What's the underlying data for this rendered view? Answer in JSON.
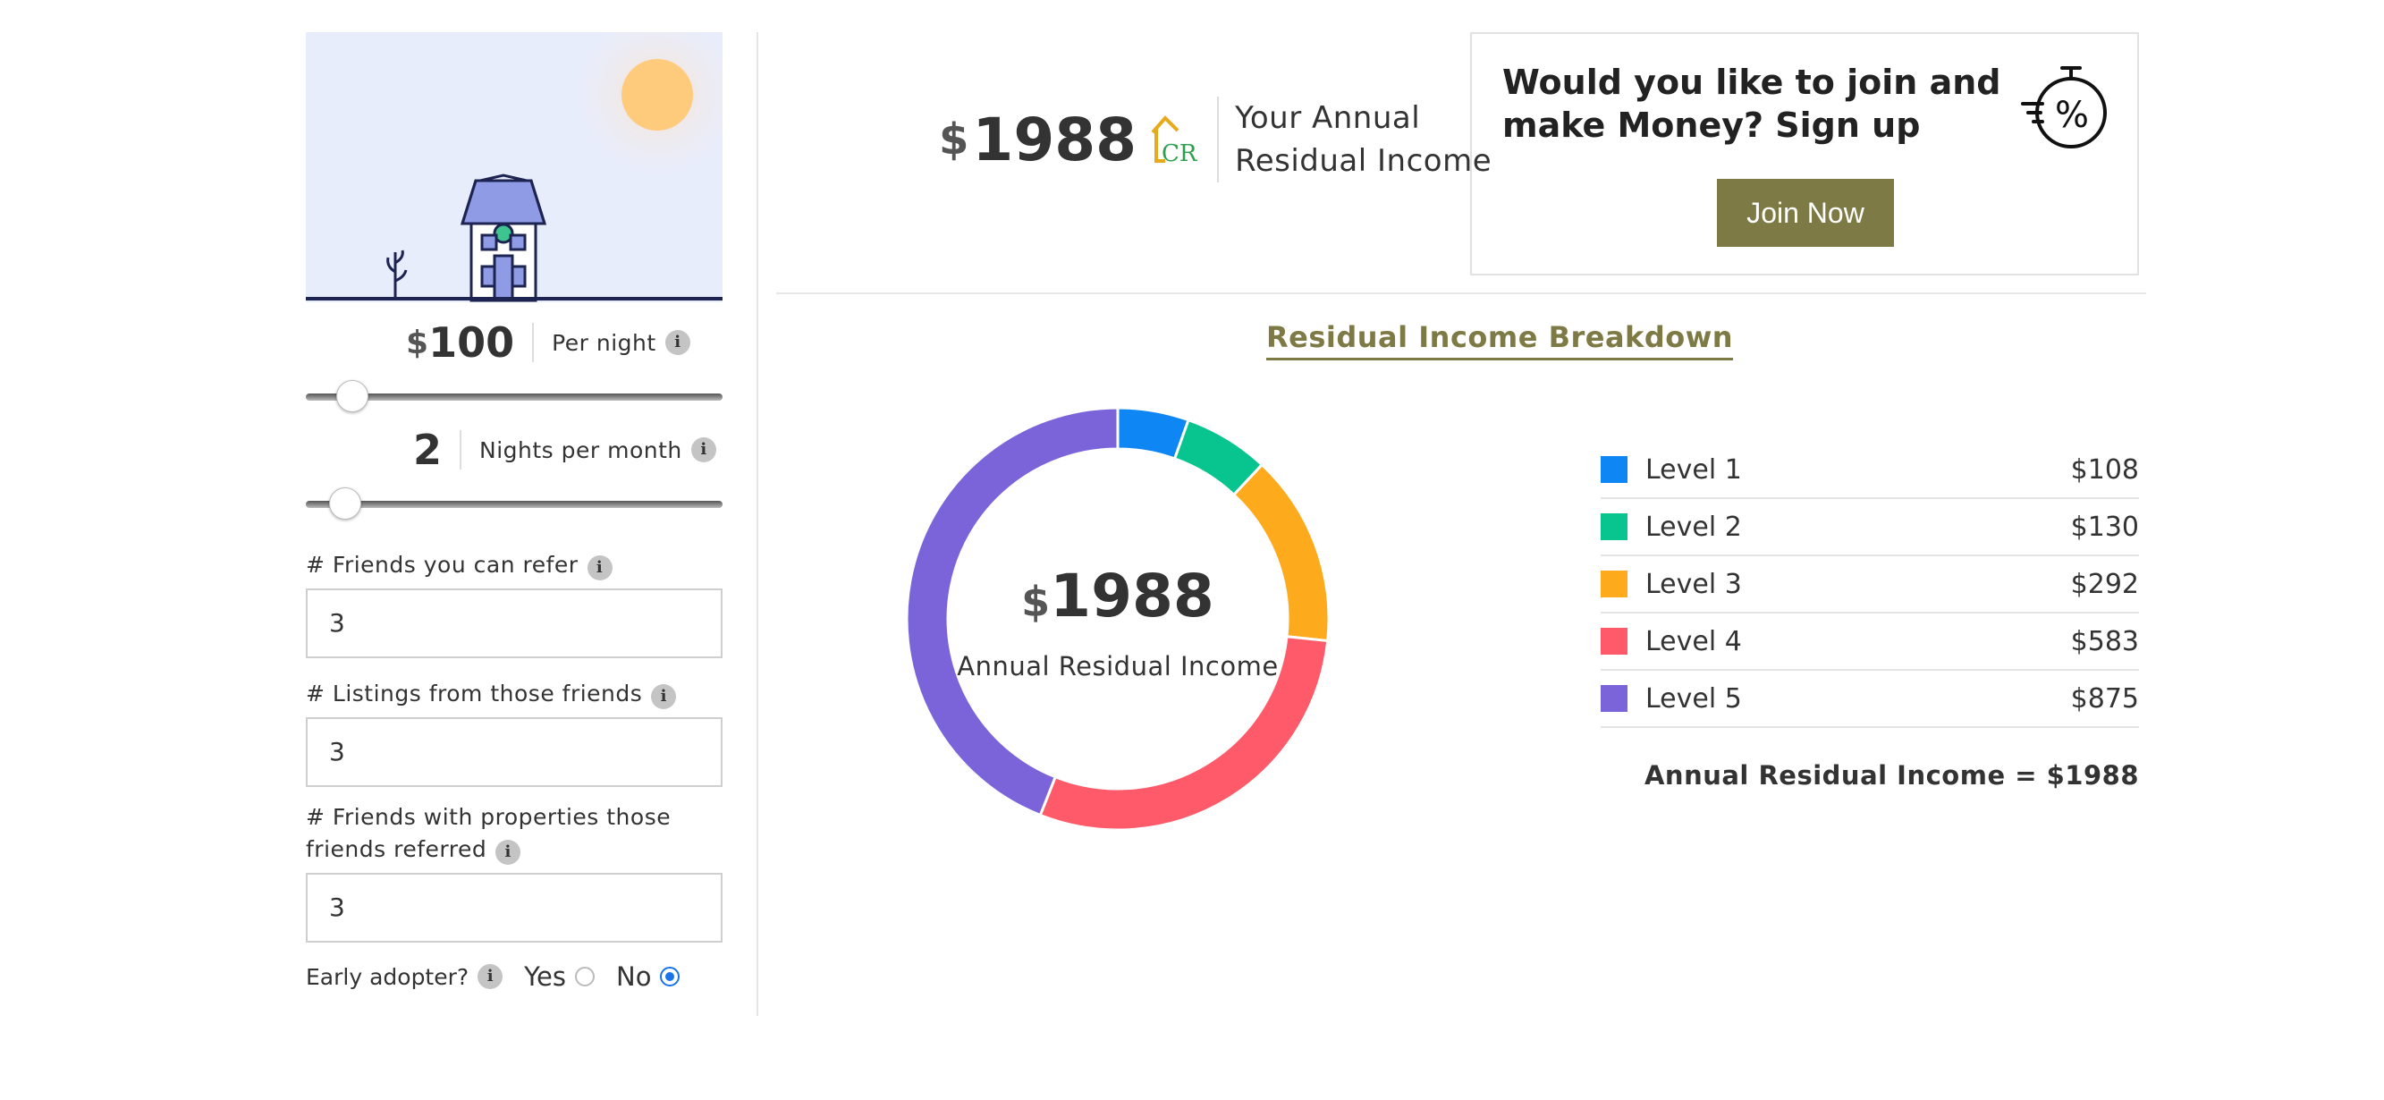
{
  "calculator": {
    "price_currency": "$",
    "price_value": "100",
    "price_label": "Per night",
    "price_slider_fraction": 0.08,
    "nights_value": "2",
    "nights_label": "Nights per month",
    "nights_slider_fraction": 0.06,
    "friends_label": "# Friends you can refer",
    "friends_value": "3",
    "listings_label": "# Listings from those friends",
    "listings_value": "3",
    "properties_label_line1": "# Friends with properties those",
    "properties_label_line2": "friends referred",
    "properties_value": "3",
    "early_adopter_label": "Early adopter?",
    "yes_label": "Yes",
    "no_label": "No",
    "selected": "No",
    "info_glyph": "i"
  },
  "summary": {
    "currency": "$",
    "amount": "1988",
    "logo_text": "CR",
    "label_line1": "Your Annual",
    "label_line2": "Residual Income"
  },
  "cta": {
    "headline": "Would you like to join and make Money? Sign up",
    "button_label": "Join Now",
    "icon": "percent-timer-icon"
  },
  "breakdown": {
    "title": "Residual Income Breakdown",
    "center_currency": "$",
    "center_amount": "1988",
    "center_caption": "Annual Residual Income",
    "total_text": "Annual Residual Income = $1988"
  },
  "chart_data": {
    "type": "pie",
    "categories": [
      "Level 1",
      "Level 2",
      "Level 3",
      "Level 4",
      "Level 5"
    ],
    "values": [
      108,
      130,
      292,
      583,
      875
    ],
    "display_values": [
      "$108",
      "$130",
      "$292",
      "$583",
      "$875"
    ],
    "colors": [
      "#0e87f5",
      "#08c58f",
      "#fdaa1d",
      "#fe5a69",
      "#7b64d9"
    ]
  }
}
